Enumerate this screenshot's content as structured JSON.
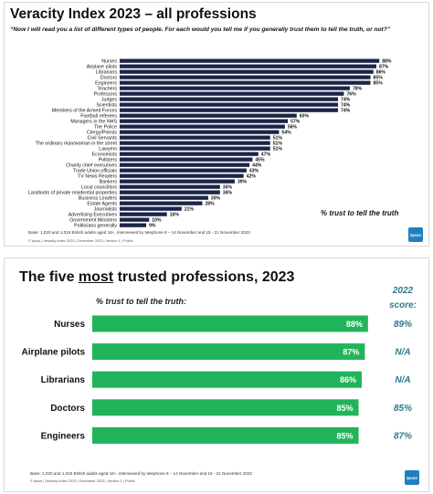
{
  "panel1": {
    "title": "Veracity Index 2023 – all professions",
    "question": "“Now I will read you a list of different types of people. For each would you tell me if you generally trust them to tell the truth, or not?”",
    "axis_label": "% trust to tell the truth",
    "base_note": "Base: 1,020 and 1,015 British adults aged 16+, interviewed by telephone 8 – 14 November and 15 - 21 November 2023",
    "footer": "© Ipsos | Veracity Index 2023 | December 2023 | Version 1 | Public",
    "logo": "Ipsos"
  },
  "panel2": {
    "title_pre": "The five ",
    "title_emph": "most",
    "title_post": " trusted professions, 2023",
    "subtitle": "% trust to tell the truth:",
    "col2022_line1": "2022",
    "col2022_line2": "score:",
    "base_note": "Base: 1,020 and 1,015 British adults aged 16+, interviewed by telephone 8 – 14 November and 15 - 21 November 2023",
    "footer": "© Ipsos | Veracity Index 2023 | December 2023 | Version 1 | Public",
    "logo": "Ipsos"
  },
  "colors": {
    "navy": "#1b2548",
    "green": "#22b45a",
    "teal": "#2d7a8e"
  },
  "chart_data": [
    {
      "type": "bar",
      "orientation": "horizontal",
      "title": "Veracity Index 2023 – all professions",
      "xlabel": "% trust to tell the truth",
      "xlim": [
        0,
        100
      ],
      "categories": [
        "Nurses",
        "Airplane pilots",
        "Librarians",
        "Doctors",
        "Engineers",
        "Teachers",
        "Professors",
        "Judges",
        "Scientists",
        "Members of the Armed Forces",
        "Football referees",
        "Managers in the NHS",
        "The Police",
        "Clergy/Priests",
        "Civil Servants",
        "The ordinary man/woman in the street",
        "Lawyers",
        "Economists",
        "Pollsters",
        "Charity chief executives",
        "Trade Union officials",
        "TV News Readers",
        "Bankers",
        "Local councillors",
        "Landlords of private residential properties",
        "Business Leaders",
        "Estate Agents",
        "Journalists",
        "Advertising Executives",
        "Government Ministers",
        "Politicians generally"
      ],
      "values": [
        88,
        87,
        86,
        85,
        85,
        78,
        76,
        74,
        74,
        74,
        60,
        57,
        56,
        54,
        51,
        51,
        51,
        47,
        45,
        44,
        43,
        42,
        39,
        34,
        34,
        30,
        28,
        21,
        16,
        10,
        9
      ],
      "value_labels": [
        "88%",
        "87%",
        "86%",
        "85%",
        "85%",
        "78%",
        "76%",
        "74%",
        "74%",
        "74%",
        "60%",
        "57%",
        "56%",
        "54%",
        "51%",
        "51%",
        "51%",
        "47%",
        "45%",
        "44%",
        "43%",
        "42%",
        "39%",
        "34%",
        "34%",
        "30%",
        "28%",
        "21%",
        "16%",
        "10%",
        "9%"
      ],
      "grid": false,
      "legend": "none"
    },
    {
      "type": "bar",
      "orientation": "horizontal",
      "title": "The five most trusted professions, 2023",
      "xlabel": "% trust to tell the truth:",
      "xlim": [
        0,
        100
      ],
      "categories": [
        "Nurses",
        "Airplane pilots",
        "Librarians",
        "Doctors",
        "Engineers"
      ],
      "values": [
        88,
        87,
        86,
        85,
        85
      ],
      "value_labels": [
        "88%",
        "87%",
        "86%",
        "85%",
        "85%"
      ],
      "score_2022": [
        "89%",
        "N/A",
        "N/A",
        "85%",
        "87%"
      ],
      "grid": false,
      "legend": "none"
    }
  ]
}
